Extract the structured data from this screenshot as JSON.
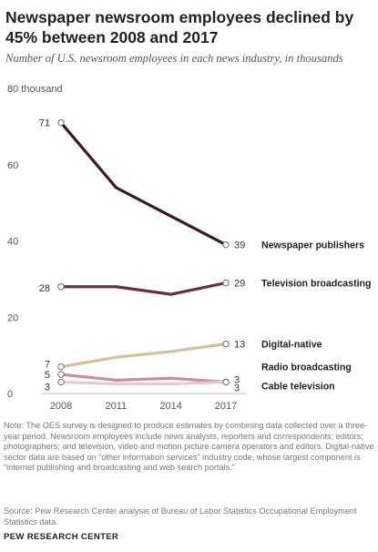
{
  "header": {
    "title": "Newspaper newsroom employees declined by 45% between 2008 and 2017",
    "subtitle": "Number of U.S. newsroom employees in each news industry, in thousands"
  },
  "footer": {
    "note": "Note: The OES survey is designed to produce estimates by combining data collected over a three-year period. Newsroom employees include news analysts, reporters and correspondents; editors; photographers; and television, video and motion picture camera operators and editors. Digital-native sector data are based on “other information services” industry code, whose largest component is “internet publishing and broadcasting and web search portals.”",
    "source": "Source: Pew Research Center analysis of Bureau of Labor Statistics Occupational Employment Statistics data.",
    "org": "PEW RESEARCH CENTER"
  },
  "chart_data": {
    "type": "line",
    "title": "Newspaper newsroom employees declined by 45% between 2008 and 2017",
    "subtitle": "Number of U.S. newsroom employees in each news industry, in thousands",
    "x": [
      2008,
      2011,
      2014,
      2017
    ],
    "x_tick_labels": [
      "2008",
      "2011",
      "2014",
      "2017"
    ],
    "y_tick_labels": [
      "0",
      "20",
      "40",
      "60",
      "80 thousand"
    ],
    "y_ticks": [
      0,
      20,
      40,
      60,
      80
    ],
    "ylim": [
      0,
      80
    ],
    "grid": false,
    "legend": "direct labels at right end of lines",
    "series": [
      {
        "name": "Newspaper publishers",
        "values": [
          71,
          54,
          46.5,
          39
        ],
        "color": "#3d1a1f",
        "start_label": "71",
        "end_label": "39"
      },
      {
        "name": "Television broadcasting",
        "values": [
          28,
          28,
          26,
          29
        ],
        "color": "#6b3038",
        "start_label": "28",
        "end_label": "29"
      },
      {
        "name": "Digital-native",
        "values": [
          7,
          9.5,
          11,
          13
        ],
        "color": "#cfc19a",
        "start_label": "7",
        "end_label": "13"
      },
      {
        "name": "Radio broadcasting",
        "values": [
          5,
          3.5,
          4,
          3
        ],
        "color": "#c98f99",
        "start_label": "5",
        "end_label": "3"
      },
      {
        "name": "Cable television",
        "values": [
          3,
          2.5,
          2.5,
          3
        ],
        "color": "#e8c9cf",
        "start_label": "3",
        "end_label": "3"
      }
    ]
  }
}
